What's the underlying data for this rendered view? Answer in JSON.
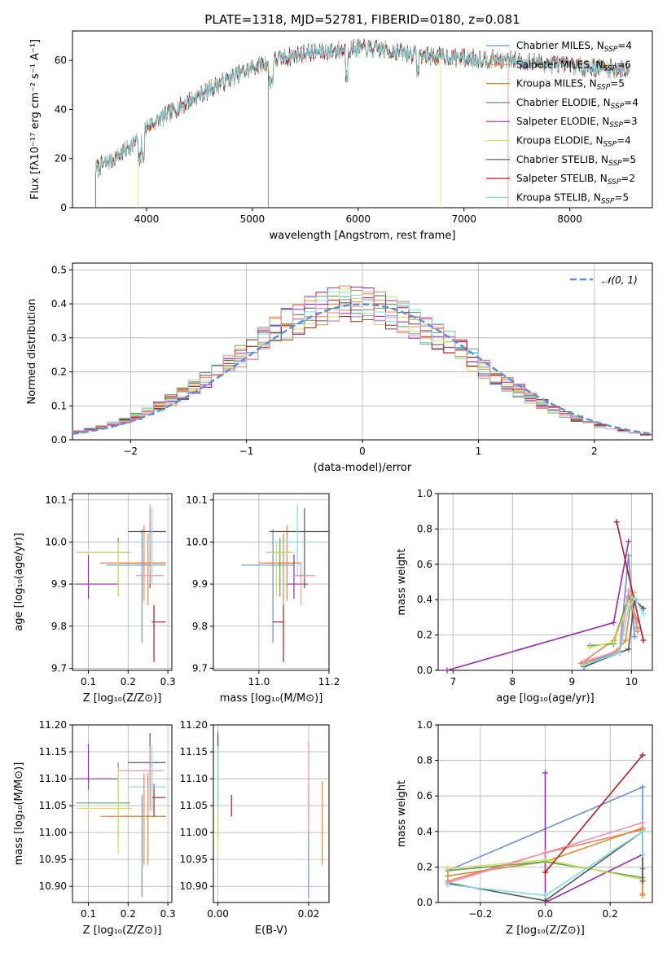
{
  "figure": {
    "title": "PLATE=1318, MJD=52781, FIBERID=0180, z=0.081"
  },
  "chart_data": [
    {
      "id": "spectrum",
      "type": "line",
      "title": "PLATE=1318, MJD=52781, FIBERID=0180, z=0.081",
      "xlabel": "wavelength [Angstrom, rest frame]",
      "ylabel": "Flux [fλ10⁻¹⁷ erg cm⁻² s⁻¹ A⁻¹]",
      "xlim": [
        3300,
        8780
      ],
      "ylim": [
        0,
        72
      ],
      "xticks": [
        4000,
        5000,
        6000,
        7000,
        8000
      ],
      "yticks": [
        0,
        20,
        40,
        60
      ],
      "grid": false,
      "legend": "top-right",
      "continuum": {
        "x": [
          3520,
          3700,
          3900,
          4000,
          4200,
          4500,
          4800,
          5000,
          5200,
          5500,
          5800,
          6000,
          6300,
          6600,
          7000,
          7500,
          8000,
          8600
        ],
        "y": [
          16,
          20,
          27,
          33,
          38,
          46,
          53,
          57,
          60,
          63,
          64,
          65,
          64,
          62,
          61,
          60,
          58,
          56
        ]
      },
      "series": [
        {
          "name": "Chabrier MILES, N$_{SSP}$=4",
          "label_main": "Chabrier MILES, N",
          "label_sub": "SSP",
          "label_tail": "=4",
          "color": "#6a8fdc"
        },
        {
          "name": "Salpeter MILES, N$_{SSP}$=6",
          "label_main": "Salpeter MILES, N",
          "label_sub": "SSP",
          "label_tail": "=6",
          "color": "#f07f55"
        },
        {
          "name": "Kroupa MILES, N$_{SSP}$=5",
          "label_main": "Kroupa MILES, N",
          "label_sub": "SSP",
          "label_tail": "=5",
          "color": "#e08a2e"
        },
        {
          "name": "Chabrier ELODIE, N$_{SSP}$=4",
          "label_main": "Chabrier ELODIE, N",
          "label_sub": "SSP",
          "label_tail": "=4",
          "color": "#5aa05a"
        },
        {
          "name": "Salpeter ELODIE, N$_{SSP}$=3",
          "label_main": "Salpeter ELODIE, N",
          "label_sub": "SSP",
          "label_tail": "=3",
          "color": "#9c27b0"
        },
        {
          "name": "Kroupa ELODIE, N$_{SSP}$=4",
          "label_main": "Kroupa ELODIE, N",
          "label_sub": "SSP",
          "label_tail": "=4",
          "color": "#d4e157"
        },
        {
          "name": "Chabrier STELIB, N$_{SSP}$=5",
          "label_main": "Chabrier STELIB, N",
          "label_sub": "SSP",
          "label_tail": "=5",
          "color": "#555555"
        },
        {
          "name": "Salpeter STELIB, N$_{SSP}$=2",
          "label_main": "Salpeter STELIB, N",
          "label_sub": "SSP",
          "label_tail": "=2",
          "color": "#b71c1c"
        },
        {
          "name": "Kroupa STELIB, N$_{SSP}$=5",
          "label_main": "Kroupa STELIB, N",
          "label_sub": "SSP",
          "label_tail": "=5",
          "color": "#80deea"
        }
      ],
      "dropouts": [
        {
          "series": 7,
          "x": 3520
        },
        {
          "series": 5,
          "x": 3920
        },
        {
          "series": 6,
          "x": 5150
        },
        {
          "series": 5,
          "x": 6780
        },
        {
          "series": 1,
          "x": 7420
        }
      ]
    },
    {
      "id": "residuals",
      "type": "line",
      "xlabel": "(data-model)/error",
      "ylabel": "Normed distribution",
      "xlim": [
        -2.5,
        2.5
      ],
      "ylim": [
        0,
        0.52
      ],
      "xticks": [
        -2,
        -1,
        0,
        1,
        2
      ],
      "yticks": [
        0.0,
        0.1,
        0.2,
        0.3,
        0.4,
        0.5
      ],
      "grid": true,
      "legend": "top-right",
      "reference": {
        "name": "N(0,1)",
        "label": "𝒩(0, 1)",
        "color": "#5b8fd6"
      },
      "bin_width": 0.1
    },
    {
      "id": "age_vs_z",
      "type": "scatter",
      "xlabel": "Z [log₁₀(Z/Z⊙)]",
      "ylabel": "age  [log₁₀(age/yr)]",
      "xlim": [
        0.06,
        0.31
      ],
      "ylim": [
        9.695,
        10.115
      ],
      "xticks": [
        0.1,
        0.2,
        0.3
      ],
      "yticks": [
        9.7,
        9.8,
        9.9,
        10.0,
        10.1
      ],
      "grid": true,
      "points": [
        {
          "x": 0.235,
          "y": 9.945,
          "xerr": [
            0.145,
            0.295
          ],
          "yerr": [
            9.76,
            10.03
          ],
          "color": "#6a8fdc"
        },
        {
          "x": 0.24,
          "y": 9.95,
          "xerr": [
            0.13,
            0.295
          ],
          "yerr": [
            9.86,
            10.04
          ],
          "color": "#f07f55"
        },
        {
          "x": 0.25,
          "y": 9.95,
          "xerr": [
            0.175,
            0.295
          ],
          "yerr": [
            9.85,
            10.02
          ],
          "color": "#e08a2e"
        },
        {
          "x": 0.175,
          "y": 9.975,
          "xerr": [
            0.07,
            0.205
          ],
          "yerr": [
            9.87,
            10.01
          ],
          "color": "#5aa05a"
        },
        {
          "x": 0.1,
          "y": 9.9,
          "xerr": [
            0.065,
            0.175
          ],
          "yerr": [
            9.865,
            9.97
          ],
          "color": "#9c27b0"
        },
        {
          "x": 0.175,
          "y": 9.975,
          "xerr": [
            0.07,
            0.21
          ],
          "yerr": [
            9.87,
            10.0
          ],
          "color": "#d4e157"
        },
        {
          "x": 0.255,
          "y": 10.025,
          "xerr": [
            0.2,
            0.295
          ],
          "yerr": [
            9.89,
            10.08
          ],
          "color": "#555555"
        },
        {
          "x": 0.265,
          "y": 9.81,
          "xerr": [
            0.26,
            0.295
          ],
          "yerr": [
            9.715,
            9.85
          ],
          "color": "#b71c1c"
        },
        {
          "x": 0.255,
          "y": 9.92,
          "xerr": [
            0.22,
            0.29
          ],
          "yerr": [
            9.9,
            10.09
          ],
          "color": "#f48fb1"
        },
        {
          "x": 0.26,
          "y": 10.0,
          "xerr": [
            0.22,
            0.295
          ],
          "yerr": [
            9.9,
            10.08
          ],
          "color": "#80deea"
        }
      ]
    },
    {
      "id": "age_vs_mass",
      "type": "scatter",
      "xlabel": "mass [log₁₀(M/M⊙)]",
      "ylabel": "",
      "xlim": [
        10.87,
        11.2
      ],
      "ylim": [
        9.695,
        10.115
      ],
      "xticks": [
        11.0,
        11.2
      ],
      "yticks": [
        9.7,
        9.8,
        9.9,
        10.0,
        10.1
      ],
      "grid": true,
      "points": [
        {
          "x": 11.04,
          "y": 9.945,
          "xerr": [
            10.95,
            11.1
          ],
          "yerr": [
            9.76,
            10.03
          ],
          "color": "#6a8fdc"
        },
        {
          "x": 11.08,
          "y": 9.95,
          "xerr": [
            11.0,
            11.12
          ],
          "yerr": [
            9.86,
            10.04
          ],
          "color": "#f07f55"
        },
        {
          "x": 11.07,
          "y": 9.95,
          "xerr": [
            11.02,
            11.12
          ],
          "yerr": [
            9.85,
            10.02
          ],
          "color": "#e08a2e"
        },
        {
          "x": 11.06,
          "y": 9.975,
          "xerr": [
            11.02,
            11.09
          ],
          "yerr": [
            9.87,
            10.01
          ],
          "color": "#5aa05a"
        },
        {
          "x": 11.1,
          "y": 9.9,
          "xerr": [
            11.08,
            11.14
          ],
          "yerr": [
            9.865,
            9.97
          ],
          "color": "#9c27b0"
        },
        {
          "x": 11.05,
          "y": 9.975,
          "xerr": [
            11.02,
            11.1
          ],
          "yerr": [
            9.87,
            10.0
          ],
          "color": "#d4e157"
        },
        {
          "x": 11.13,
          "y": 10.025,
          "xerr": [
            11.03,
            11.2
          ],
          "yerr": [
            9.89,
            10.08
          ],
          "color": "#555555"
        },
        {
          "x": 11.07,
          "y": 9.81,
          "xerr": [
            11.04,
            11.07
          ],
          "yerr": [
            9.715,
            9.85
          ],
          "color": "#b71c1c"
        },
        {
          "x": 11.12,
          "y": 9.92,
          "xerr": [
            11.1,
            11.16
          ],
          "yerr": [
            9.85,
            9.95
          ],
          "color": "#f48fb1"
        },
        {
          "x": 11.11,
          "y": 10.0,
          "xerr": [
            11.05,
            11.16
          ],
          "yerr": [
            9.92,
            10.09
          ],
          "color": "#80deea"
        }
      ]
    },
    {
      "id": "weight_vs_age",
      "type": "line",
      "xlabel": "age  [log₁₀(age/yr)]",
      "ylabel": "mass weight",
      "xlim": [
        6.75,
        10.35
      ],
      "ylim": [
        0,
        1.0
      ],
      "xticks": [
        7,
        8,
        9,
        10
      ],
      "yticks": [
        0.0,
        0.2,
        0.4,
        0.6,
        0.8,
        1.0
      ],
      "grid": true,
      "series": [
        {
          "color": "#6a8fdc",
          "x": [
            9.2,
            9.8,
            9.95,
            10.05
          ],
          "y": [
            0.03,
            0.11,
            0.65,
            0.19
          ]
        },
        {
          "color": "#f07f55",
          "x": [
            9.15,
            9.7,
            9.95,
            10.1
          ],
          "y": [
            0.04,
            0.17,
            0.41,
            0.28
          ]
        },
        {
          "color": "#e08a2e",
          "x": [
            9.2,
            9.75,
            9.9,
            10.0,
            10.1
          ],
          "y": [
            0.04,
            0.11,
            0.17,
            0.41,
            0.22
          ]
        },
        {
          "color": "#5aa05a",
          "x": [
            9.3,
            9.7,
            9.95,
            10.1
          ],
          "y": [
            0.14,
            0.15,
            0.42,
            0.24
          ]
        },
        {
          "color": "#9c27b0",
          "x": [
            6.9,
            9.7,
            9.95
          ],
          "y": [
            0.0,
            0.27,
            0.73
          ]
        },
        {
          "color": "#d4e157",
          "x": [
            9.3,
            9.7,
            9.95,
            10.05
          ],
          "y": [
            0.13,
            0.16,
            0.38,
            0.44
          ]
        },
        {
          "color": "#555555",
          "x": [
            9.2,
            9.8,
            9.95,
            10.05,
            10.2
          ],
          "y": [
            0.02,
            0.1,
            0.12,
            0.4,
            0.35
          ]
        },
        {
          "color": "#b71c1c",
          "x": [
            9.75,
            10.2
          ],
          "y": [
            0.84,
            0.17
          ]
        },
        {
          "color": "#f48fb1",
          "x": [
            9.2,
            9.8,
            9.95,
            10.1
          ],
          "y": [
            0.05,
            0.11,
            0.45,
            0.23
          ]
        },
        {
          "color": "#80deea",
          "x": [
            9.2,
            9.8,
            9.95,
            10.05,
            10.2
          ],
          "y": [
            0.03,
            0.1,
            0.35,
            0.41,
            0.32
          ]
        }
      ]
    },
    {
      "id": "mass_vs_z",
      "type": "scatter",
      "xlabel": "Z [log₁₀(Z/Z⊙)]",
      "ylabel": "mass [log₁₀(M/M⊙)]",
      "xlim": [
        0.06,
        0.31
      ],
      "ylim": [
        10.87,
        11.2
      ],
      "xticks": [
        0.1,
        0.2,
        0.3
      ],
      "yticks": [
        10.9,
        10.95,
        11.0,
        11.05,
        11.1,
        11.15,
        11.2
      ],
      "grid": true,
      "points": [
        {
          "x": 0.235,
          "y": 11.03,
          "xerr": [
            0.145,
            0.295
          ],
          "yerr": [
            10.88,
            11.07
          ],
          "color": "#6a8fdc"
        },
        {
          "x": 0.24,
          "y": 11.03,
          "xerr": [
            0.13,
            0.295
          ],
          "yerr": [
            10.94,
            11.11
          ],
          "color": "#f07f55"
        },
        {
          "x": 0.25,
          "y": 11.03,
          "xerr": [
            0.175,
            0.295
          ],
          "yerr": [
            10.94,
            11.11
          ],
          "color": "#e08a2e"
        },
        {
          "x": 0.175,
          "y": 11.055,
          "xerr": [
            0.07,
            0.205
          ],
          "yerr": [
            10.99,
            11.13
          ],
          "color": "#5aa05a"
        },
        {
          "x": 0.1,
          "y": 11.1,
          "xerr": [
            0.065,
            0.175
          ],
          "yerr": [
            11.08,
            11.165
          ],
          "color": "#9c27b0"
        },
        {
          "x": 0.175,
          "y": 11.045,
          "xerr": [
            0.07,
            0.21
          ],
          "yerr": [
            10.96,
            11.12
          ],
          "color": "#d4e157"
        },
        {
          "x": 0.255,
          "y": 11.13,
          "xerr": [
            0.2,
            0.295
          ],
          "yerr": [
            11.05,
            11.185
          ],
          "color": "#555555"
        },
        {
          "x": 0.265,
          "y": 11.065,
          "xerr": [
            0.26,
            0.295
          ],
          "yerr": [
            11.03,
            11.09
          ],
          "color": "#b71c1c"
        },
        {
          "x": 0.255,
          "y": 11.115,
          "xerr": [
            0.175,
            0.29
          ],
          "yerr": [
            11.04,
            11.16
          ],
          "color": "#f48fb1"
        },
        {
          "x": 0.26,
          "y": 11.085,
          "xerr": [
            0.2,
            0.295
          ],
          "yerr": [
            11.04,
            11.16
          ],
          "color": "#80deea"
        }
      ]
    },
    {
      "id": "mass_vs_ebv",
      "type": "scatter",
      "xlabel": "E(B-V)",
      "ylabel": "",
      "xlim": [
        -0.001,
        0.0245
      ],
      "ylim": [
        10.87,
        11.2
      ],
      "xticks": [
        0.0,
        0.02
      ],
      "yticks": [
        10.9,
        10.95,
        11.0,
        11.05,
        11.1,
        11.15,
        11.2
      ],
      "grid": true,
      "points": [
        {
          "x": 0.02,
          "y": 11.03,
          "yerr": [
            10.88,
            11.09
          ],
          "color": "#6a8fdc"
        },
        {
          "x": 0.023,
          "y": 11.02,
          "yerr": [
            10.94,
            11.095
          ],
          "color": "#e08a2e"
        },
        {
          "x": 0.0,
          "y": 11.09,
          "yerr": [
            10.99,
            11.19
          ],
          "color": "#5aa05a"
        },
        {
          "x": 0.0,
          "y": 11.05,
          "yerr": [
            10.96,
            11.13
          ],
          "color": "#d4e157"
        },
        {
          "x": 0.0,
          "y": 11.12,
          "yerr": [
            11.05,
            11.185
          ],
          "color": "#555555"
        },
        {
          "x": 0.003,
          "y": 11.05,
          "yerr": [
            11.03,
            11.07
          ],
          "color": "#b71c1c"
        },
        {
          "x": 0.02,
          "y": 11.1,
          "yerr": [
            11.0,
            11.17
          ],
          "color": "#f48fb1"
        },
        {
          "x": 0.0,
          "y": 11.1,
          "yerr": [
            11.04,
            11.16
          ],
          "color": "#80deea"
        }
      ]
    },
    {
      "id": "weight_vs_z",
      "type": "line",
      "xlabel": "Z [log₁₀(Z/Z⊙)]",
      "ylabel": "mass weight",
      "xlim": [
        -0.33,
        0.33
      ],
      "ylim": [
        0,
        1.0
      ],
      "xticks": [
        -0.2,
        0.0,
        0.2
      ],
      "yticks": [
        0.0,
        0.2,
        0.4,
        0.6,
        0.8,
        1.0
      ],
      "grid": true,
      "series": [
        {
          "color": "#6a8fdc",
          "x": [
            -0.3,
            0.3,
            0.3
          ],
          "y": [
            0.18,
            0.65,
            0.19
          ]
        },
        {
          "color": "#f07f55",
          "x": [
            -0.3,
            0.0,
            0.3,
            0.3
          ],
          "y": [
            0.12,
            0.28,
            0.41,
            0.05
          ]
        },
        {
          "color": "#e08a2e",
          "x": [
            -0.3,
            0.0,
            0.3,
            0.3
          ],
          "y": [
            0.15,
            0.23,
            0.42,
            0.04
          ]
        },
        {
          "color": "#5aa05a",
          "x": [
            -0.3,
            0.0,
            0.3
          ],
          "y": [
            0.18,
            0.23,
            0.14
          ]
        },
        {
          "color": "#9c27b0",
          "x": [
            0.0,
            0.0,
            0.3
          ],
          "y": [
            0.73,
            0.0,
            0.27
          ]
        },
        {
          "color": "#d4e157",
          "x": [
            -0.3,
            0.0,
            0.3
          ],
          "y": [
            0.19,
            0.24,
            0.13
          ]
        },
        {
          "color": "#555555",
          "x": [
            -0.3,
            0.0,
            0.3,
            0.3
          ],
          "y": [
            0.11,
            0.01,
            0.4,
            0.12
          ]
        },
        {
          "color": "#b71c1c",
          "x": [
            0.0,
            0.3
          ],
          "y": [
            0.17,
            0.83
          ]
        },
        {
          "color": "#f48fb1",
          "x": [
            -0.3,
            0.0,
            0.3
          ],
          "y": [
            0.11,
            0.28,
            0.45
          ]
        },
        {
          "color": "#80deea",
          "x": [
            -0.3,
            0.0,
            0.3,
            0.3
          ],
          "y": [
            0.1,
            0.04,
            0.4,
            0.27
          ]
        }
      ]
    }
  ]
}
